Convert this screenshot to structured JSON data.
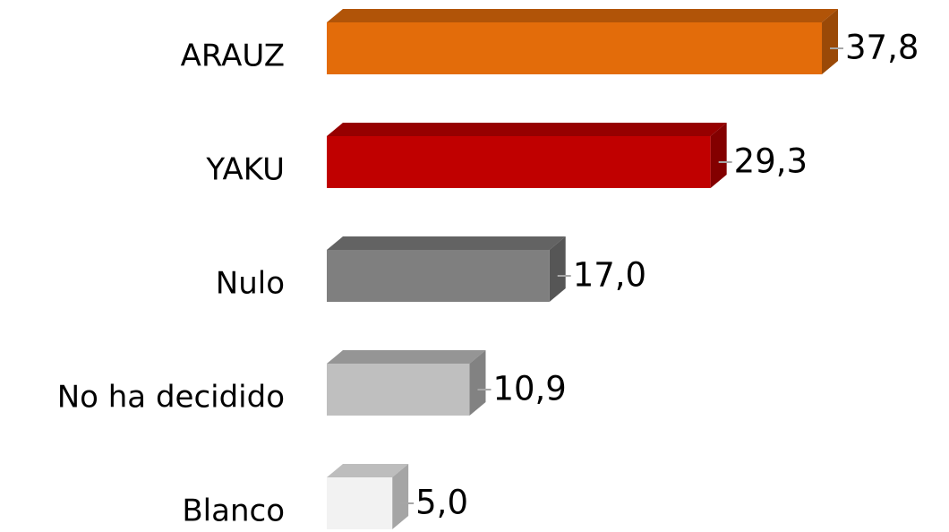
{
  "chart_data": {
    "type": "hbar3d",
    "categories": [
      "ARAUZ",
      "YAKU",
      "Nulo",
      "No ha decidido",
      "Blanco"
    ],
    "values": [
      37.8,
      29.3,
      17.0,
      10.9,
      5.0
    ],
    "value_labels": [
      "37,8",
      "29,3",
      "17,0",
      "10,9",
      "5,0"
    ],
    "colors": [
      "#e36c0a",
      "#c00000",
      "#7f7f7f",
      "#bfbfbf",
      "#f2f2f2"
    ]
  }
}
